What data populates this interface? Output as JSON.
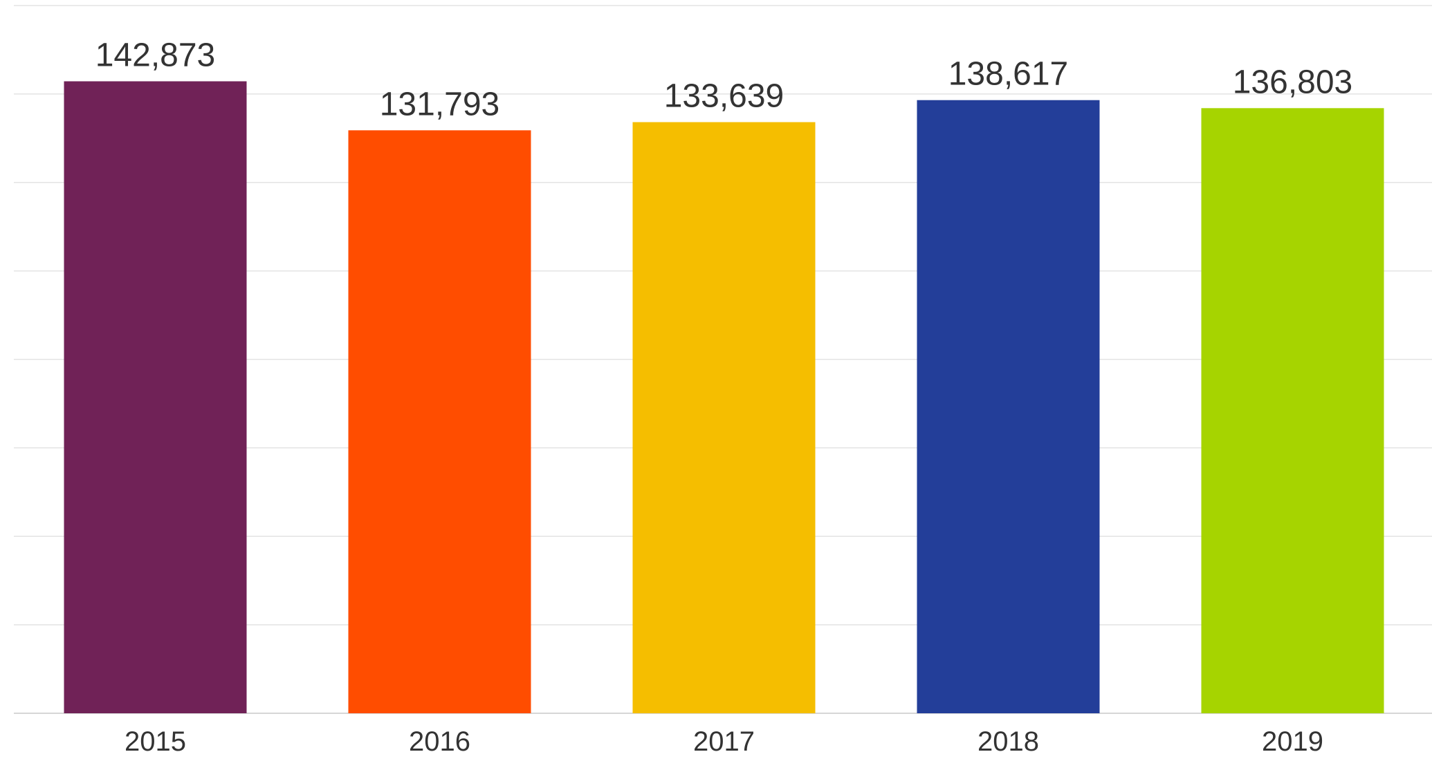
{
  "chart_data": {
    "type": "bar",
    "categories": [
      "2015",
      "2016",
      "2017",
      "2018",
      "2019"
    ],
    "values": [
      142873,
      131793,
      133639,
      138617,
      136803
    ],
    "value_labels": [
      "142,873",
      "131,793",
      "133,639",
      "138,617",
      "136,803"
    ],
    "colors": [
      "#702257",
      "#ff4d00",
      "#f5be00",
      "#233e99",
      "#a6d400"
    ],
    "title": "",
    "xlabel": "",
    "ylabel": "",
    "ylim": [
      0,
      160000
    ],
    "grid": true,
    "legend": "none"
  }
}
